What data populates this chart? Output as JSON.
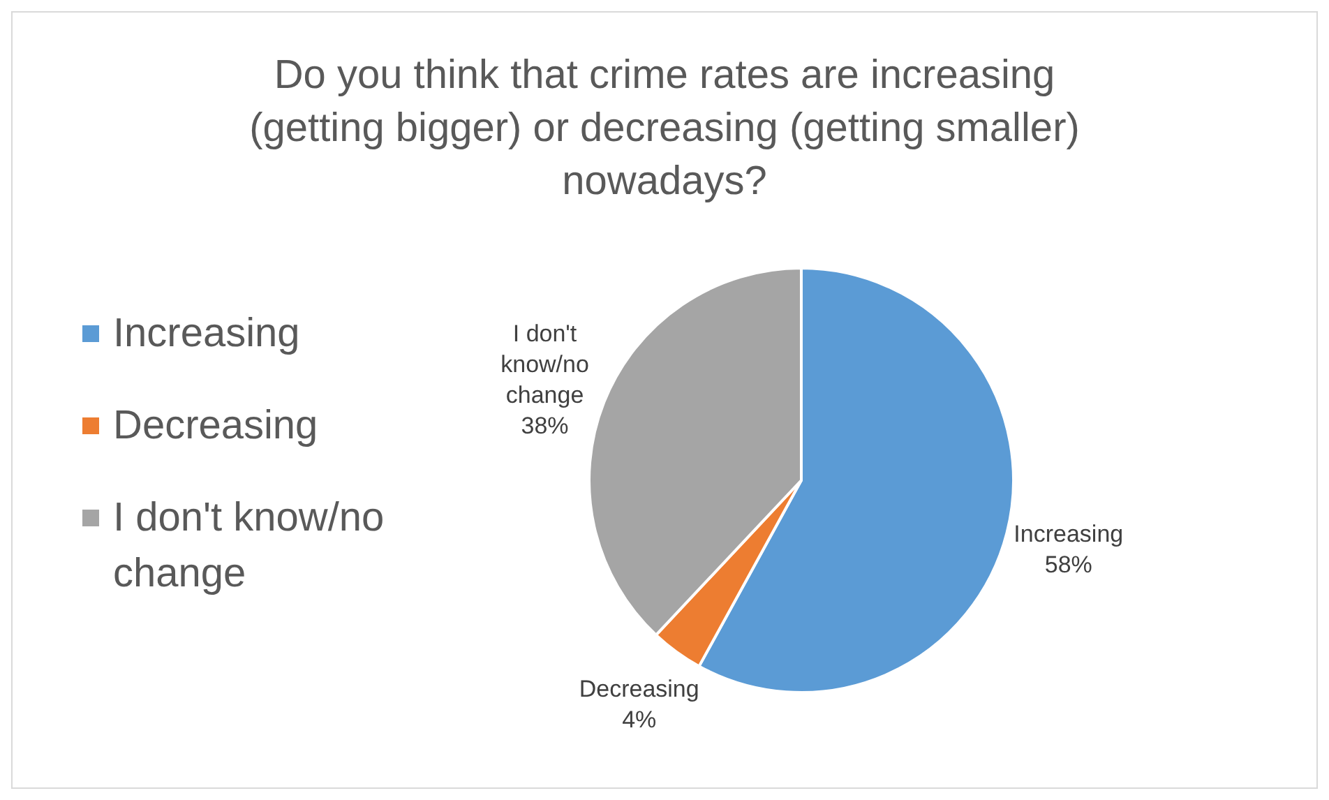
{
  "chart_data": {
    "type": "pie",
    "title": "Do you think that crime rates are increasing (getting bigger) or decreasing (getting smaller) nowadays?",
    "categories": [
      "Increasing",
      "Decreasing",
      "I don't know/no change"
    ],
    "values": [
      58,
      4,
      38
    ],
    "value_labels": [
      "58%",
      "4%",
      "38%"
    ],
    "colors": [
      "#5b9bd5",
      "#ed7d31",
      "#a5a5a5"
    ],
    "legend": "left"
  }
}
